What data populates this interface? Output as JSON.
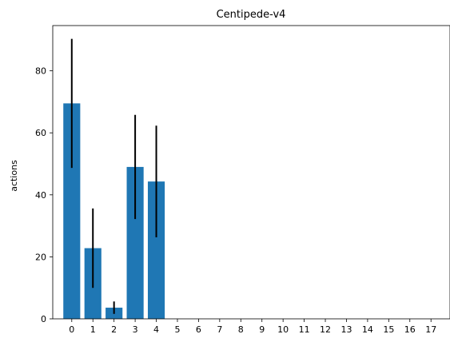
{
  "chart_data": {
    "type": "bar",
    "title": "Centipede-v4",
    "xlabel": "",
    "ylabel": "actions",
    "categories": [
      "0",
      "1",
      "2",
      "3",
      "4",
      "5",
      "6",
      "7",
      "8",
      "9",
      "10",
      "11",
      "12",
      "13",
      "14",
      "15",
      "16",
      "17"
    ],
    "values": [
      69.5,
      22.8,
      3.6,
      49.0,
      44.3,
      0,
      0,
      0,
      0,
      0,
      0,
      0,
      0,
      0,
      0,
      0,
      0,
      0
    ],
    "errors": [
      20.8,
      12.8,
      2.0,
      16.8,
      18.0,
      0,
      0,
      0,
      0,
      0,
      0,
      0,
      0,
      0,
      0,
      0,
      0,
      0
    ],
    "ylim": [
      0,
      94.6
    ],
    "yticks": [
      0,
      20,
      40,
      60,
      80
    ],
    "grid": false,
    "colors": {
      "bar": "#1f77b4",
      "error": "#000000"
    }
  }
}
